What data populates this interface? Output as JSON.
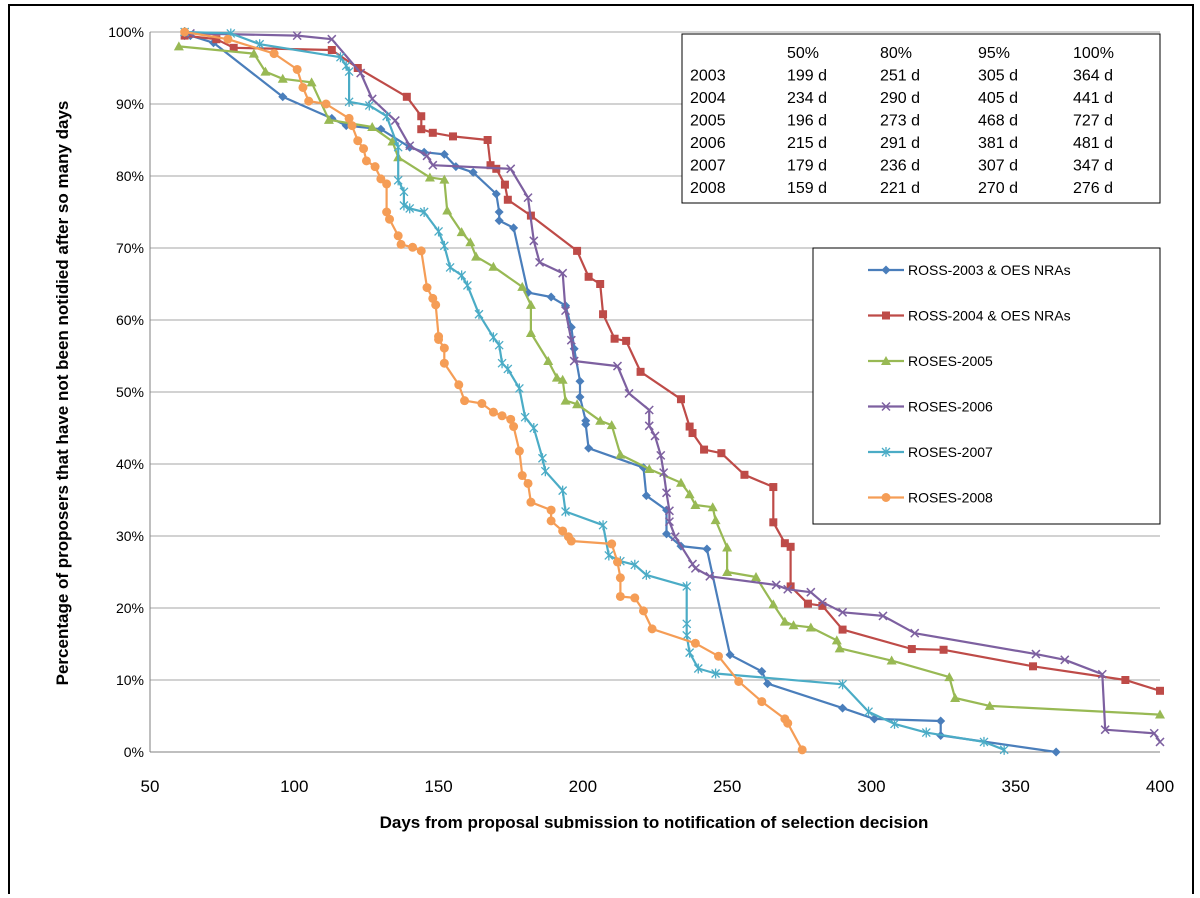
{
  "chart_data": {
    "type": "line",
    "title": "",
    "xlabel": "Days from proposal submission to notification of selection decision",
    "ylabel": "Percentage of proposers that have not been notidied after so many days",
    "xlim": [
      50,
      400
    ],
    "ylim": [
      0,
      100
    ],
    "x_ticks": [
      "50",
      "100",
      "150",
      "200",
      "250",
      "300",
      "350",
      "400"
    ],
    "y_ticks": [
      "0%",
      "10%",
      "20%",
      "30%",
      "40%",
      "50%",
      "60%",
      "70%",
      "80%",
      "90%",
      "100%"
    ],
    "grid": "horizontal",
    "legend_position": "right",
    "table": {
      "headers": [
        "",
        "50%",
        "80%",
        "95%",
        "100%"
      ],
      "rows": [
        [
          "2003",
          "199 d",
          "251 d",
          "305 d",
          "364 d"
        ],
        [
          "2004",
          "234 d",
          "290 d",
          "405 d",
          "441 d"
        ],
        [
          "2005",
          "196 d",
          "273 d",
          "468 d",
          "727 d"
        ],
        [
          "2006",
          "215 d",
          "291 d",
          "381 d",
          "481 d"
        ],
        [
          "2007",
          "179 d",
          "236 d",
          "307 d",
          "347 d"
        ],
        [
          "2008",
          "159 d",
          "221 d",
          "270 d",
          "276 d"
        ]
      ]
    },
    "series": [
      {
        "name": "ROSS-2003 & OES NRAs",
        "color": "#4a7ebb",
        "marker": "diamond",
        "points": [
          [
            62,
            99.5
          ],
          [
            64,
            99.5
          ],
          [
            72,
            98.5
          ],
          [
            96,
            91
          ],
          [
            113,
            88
          ],
          [
            118,
            87
          ],
          [
            130,
            86.5
          ],
          [
            140,
            84
          ],
          [
            145,
            83.3
          ],
          [
            152,
            83
          ],
          [
            156,
            81.3
          ],
          [
            162,
            80.5
          ],
          [
            170,
            77.5
          ],
          [
            171,
            75
          ],
          [
            171,
            73.8
          ],
          [
            176,
            72.8
          ],
          [
            181,
            63.8
          ],
          [
            189,
            63.2
          ],
          [
            194,
            62
          ],
          [
            196,
            59
          ],
          [
            197,
            56
          ],
          [
            199,
            51.5
          ],
          [
            199,
            49.3
          ],
          [
            201,
            46
          ],
          [
            201,
            45.5
          ],
          [
            202,
            42.2
          ],
          [
            221,
            39.5
          ],
          [
            222,
            35.6
          ],
          [
            229,
            33.6
          ],
          [
            229,
            30.3
          ],
          [
            234,
            28.6
          ],
          [
            243,
            28.2
          ],
          [
            251,
            13.5
          ],
          [
            262,
            11.2
          ],
          [
            264,
            9.5
          ],
          [
            290,
            6.1
          ],
          [
            301,
            4.6
          ],
          [
            324,
            4.3
          ],
          [
            324,
            2.3
          ],
          [
            364,
            0
          ]
        ]
      },
      {
        "name": "ROSS-2004 & OES NRAs",
        "color": "#be4b48",
        "marker": "square",
        "points": [
          [
            62,
            99.5
          ],
          [
            73,
            99
          ],
          [
            79,
            97.8
          ],
          [
            113,
            97.5
          ],
          [
            122,
            95
          ],
          [
            139,
            91
          ],
          [
            144,
            88.3
          ],
          [
            144,
            86.5
          ],
          [
            148,
            86
          ],
          [
            155,
            85.5
          ],
          [
            167,
            85
          ],
          [
            168,
            81.5
          ],
          [
            170,
            81
          ],
          [
            173,
            78.8
          ],
          [
            174,
            76.7
          ],
          [
            182,
            74.5
          ],
          [
            198,
            69.6
          ],
          [
            202,
            66
          ],
          [
            206,
            65
          ],
          [
            207,
            60.8
          ],
          [
            211,
            57.4
          ],
          [
            215,
            57.1
          ],
          [
            220,
            52.8
          ],
          [
            234,
            49
          ],
          [
            237,
            45.2
          ],
          [
            238,
            44.3
          ],
          [
            242,
            42
          ],
          [
            248,
            41.5
          ],
          [
            256,
            38.5
          ],
          [
            266,
            36.8
          ],
          [
            266,
            31.9
          ],
          [
            270,
            29
          ],
          [
            272,
            28.5
          ],
          [
            272,
            23
          ],
          [
            278,
            20.6
          ],
          [
            283,
            20.3
          ],
          [
            290,
            17
          ],
          [
            314,
            14.3
          ],
          [
            325,
            14.2
          ],
          [
            356,
            11.9
          ],
          [
            388,
            10
          ],
          [
            400,
            8.5
          ]
        ]
      },
      {
        "name": "ROSES-2005",
        "color": "#98b954",
        "marker": "triangle",
        "points": [
          [
            60,
            98
          ],
          [
            86,
            97
          ],
          [
            90,
            94.5
          ],
          [
            96,
            93.5
          ],
          [
            106,
            93
          ],
          [
            112,
            87.8
          ],
          [
            127,
            86.8
          ],
          [
            134,
            84.8
          ],
          [
            136,
            82.6
          ],
          [
            147,
            79.8
          ],
          [
            152,
            79.5
          ],
          [
            153,
            75.2
          ],
          [
            158,
            72.2
          ],
          [
            161,
            70.8
          ],
          [
            163,
            68.8
          ],
          [
            169,
            67.4
          ],
          [
            179,
            64.6
          ],
          [
            182,
            62.1
          ],
          [
            182,
            58.2
          ],
          [
            188,
            54.3
          ],
          [
            191,
            52
          ],
          [
            193,
            51.7
          ],
          [
            194,
            48.8
          ],
          [
            198,
            48.3
          ],
          [
            206,
            46
          ],
          [
            210,
            45.4
          ],
          [
            213,
            41.3
          ],
          [
            223,
            39.3
          ],
          [
            234,
            37.4
          ],
          [
            237,
            35.8
          ],
          [
            239,
            34.3
          ],
          [
            245,
            34
          ],
          [
            246,
            32.2
          ],
          [
            250,
            28.4
          ],
          [
            250,
            25
          ],
          [
            260,
            24.3
          ],
          [
            266,
            20.5
          ],
          [
            270,
            18.1
          ],
          [
            273,
            17.6
          ],
          [
            279,
            17.3
          ],
          [
            288,
            15.5
          ],
          [
            289,
            14.4
          ],
          [
            307,
            12.7
          ],
          [
            327,
            10.4
          ],
          [
            329,
            7.5
          ],
          [
            341,
            6.4
          ],
          [
            400,
            5.2
          ]
        ]
      },
      {
        "name": "ROSES-2006",
        "color": "#7d60a0",
        "marker": "x",
        "points": [
          [
            64,
            99.8
          ],
          [
            101,
            99.5
          ],
          [
            113,
            99
          ],
          [
            123,
            94.3
          ],
          [
            127,
            90.7
          ],
          [
            135,
            87.7
          ],
          [
            140,
            84.2
          ],
          [
            146,
            82.8
          ],
          [
            148,
            81.5
          ],
          [
            175,
            81
          ],
          [
            181,
            77
          ],
          [
            183,
            71
          ],
          [
            185,
            68
          ],
          [
            193,
            66.5
          ],
          [
            194,
            61.3
          ],
          [
            196,
            57.2
          ],
          [
            197,
            54.3
          ],
          [
            212,
            53.6
          ],
          [
            216,
            49.8
          ],
          [
            223,
            47.5
          ],
          [
            223,
            45.3
          ],
          [
            225,
            43.9
          ],
          [
            227,
            41.2
          ],
          [
            228,
            38.8
          ],
          [
            229,
            36
          ],
          [
            230,
            33.5
          ],
          [
            230,
            32
          ],
          [
            232,
            29.9
          ],
          [
            238,
            26.1
          ],
          [
            239,
            25.5
          ],
          [
            244,
            24.4
          ],
          [
            267,
            23.2
          ],
          [
            271,
            22.6
          ],
          [
            279,
            22.2
          ],
          [
            283,
            20.8
          ],
          [
            290,
            19.4
          ],
          [
            304,
            18.9
          ],
          [
            315,
            16.5
          ],
          [
            357,
            13.6
          ],
          [
            367,
            12.8
          ],
          [
            380,
            10.8
          ],
          [
            381,
            3.1
          ],
          [
            398,
            2.6
          ],
          [
            400,
            1.4
          ]
        ]
      },
      {
        "name": "ROSES-2007",
        "color": "#4bacc6",
        "marker": "asterisk",
        "points": [
          [
            62,
            100
          ],
          [
            78,
            99.8
          ],
          [
            88,
            98.3
          ],
          [
            116,
            96.5
          ],
          [
            118,
            95.3
          ],
          [
            119,
            94.5
          ],
          [
            119,
            90.3
          ],
          [
            126,
            89.8
          ],
          [
            132,
            88.3
          ],
          [
            136,
            84
          ],
          [
            136,
            79.4
          ],
          [
            138,
            77.8
          ],
          [
            138,
            75.9
          ],
          [
            140,
            75.5
          ],
          [
            145,
            75
          ],
          [
            150,
            72.3
          ],
          [
            152,
            70.3
          ],
          [
            154,
            67.3
          ],
          [
            158,
            66.2
          ],
          [
            160,
            64.8
          ],
          [
            164,
            60.8
          ],
          [
            169,
            57.6
          ],
          [
            171,
            56.5
          ],
          [
            172,
            54
          ],
          [
            174,
            53.2
          ],
          [
            178,
            50.5
          ],
          [
            180,
            46.5
          ],
          [
            183,
            45
          ],
          [
            186,
            40.8
          ],
          [
            187,
            39
          ],
          [
            193,
            36.3
          ],
          [
            194,
            33.4
          ],
          [
            207,
            31.5
          ],
          [
            209,
            27.3
          ],
          [
            213,
            26.5
          ],
          [
            218,
            26
          ],
          [
            222,
            24.6
          ],
          [
            236,
            23
          ],
          [
            236,
            17.8
          ],
          [
            236,
            16.2
          ],
          [
            237,
            13.8
          ],
          [
            240,
            11.6
          ],
          [
            246,
            10.9
          ],
          [
            290,
            9.4
          ],
          [
            299,
            5.6
          ],
          [
            308,
            3.9
          ],
          [
            319,
            2.7
          ],
          [
            339,
            1.4
          ],
          [
            346,
            0.3
          ]
        ]
      },
      {
        "name": "ROSES-2008",
        "color": "#f59d56",
        "marker": "circle",
        "points": [
          [
            62,
            100
          ],
          [
            77,
            99
          ],
          [
            93,
            97
          ],
          [
            101,
            94.8
          ],
          [
            103,
            92.3
          ],
          [
            105,
            90.4
          ],
          [
            111,
            90
          ],
          [
            119,
            88
          ],
          [
            120,
            87
          ],
          [
            122,
            84.9
          ],
          [
            124,
            83.8
          ],
          [
            125,
            82.1
          ],
          [
            128,
            81.3
          ],
          [
            130,
            79.6
          ],
          [
            132,
            78.9
          ],
          [
            132,
            75
          ],
          [
            133,
            74
          ],
          [
            136,
            71.7
          ],
          [
            137,
            70.5
          ],
          [
            141,
            70.1
          ],
          [
            144,
            69.6
          ],
          [
            146,
            64.5
          ],
          [
            148,
            63
          ],
          [
            149,
            62.1
          ],
          [
            150,
            57.7
          ],
          [
            150,
            57.3
          ],
          [
            152,
            56.1
          ],
          [
            152,
            54
          ],
          [
            157,
            51
          ],
          [
            159,
            48.8
          ],
          [
            165,
            48.4
          ],
          [
            169,
            47.2
          ],
          [
            172,
            46.7
          ],
          [
            175,
            46.2
          ],
          [
            176,
            45.2
          ],
          [
            178,
            41.8
          ],
          [
            179,
            38.4
          ],
          [
            181,
            37.3
          ],
          [
            182,
            34.7
          ],
          [
            189,
            33.6
          ],
          [
            189,
            32.1
          ],
          [
            193,
            30.7
          ],
          [
            195,
            29.9
          ],
          [
            196,
            29.3
          ],
          [
            210,
            28.9
          ],
          [
            212,
            26.4
          ],
          [
            213,
            24.2
          ],
          [
            213,
            21.6
          ],
          [
            218,
            21.4
          ],
          [
            221,
            19.6
          ],
          [
            224,
            17.1
          ],
          [
            239,
            15.1
          ],
          [
            247,
            13.3
          ],
          [
            254,
            9.8
          ],
          [
            262,
            7
          ],
          [
            270,
            4.6
          ],
          [
            271,
            4
          ],
          [
            276,
            0.3
          ]
        ]
      }
    ]
  }
}
